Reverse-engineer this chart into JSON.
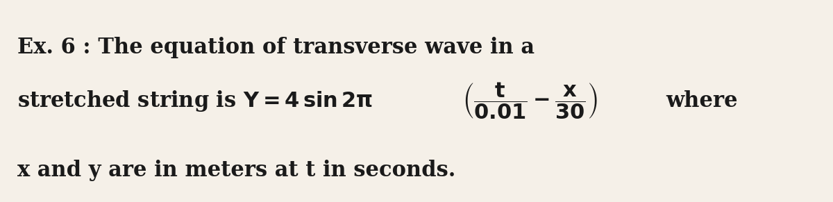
{
  "bg_color": "#f5f0e8",
  "text_color": "#1a1a1a",
  "line1": "Ex. 6 : The equation of transverse wave in a",
  "line3": "x and y are in meters at t in seconds.",
  "fig_width": 12.0,
  "fig_height": 2.91,
  "dpi": 100
}
